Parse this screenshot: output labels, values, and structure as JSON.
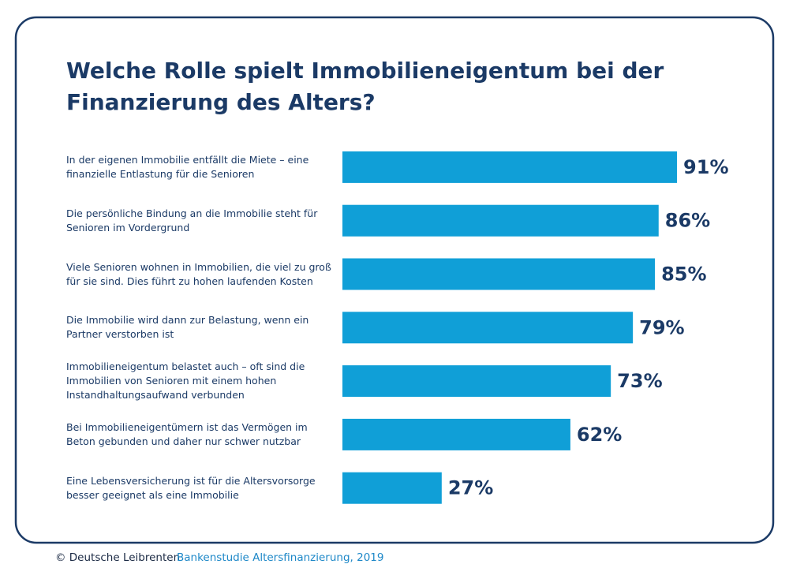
{
  "chart_data": {
    "type": "bar",
    "orientation": "horizontal",
    "title": "Welche Rolle spielt Immobilieneigentum bei der Finanzierung des Alters?",
    "categories": [
      "In der eigenen Immobilie entfällt die Miete – eine finanzielle Entlastung für die Senioren",
      "Die persönliche Bindung an die Immobilie steht für Senioren im Vordergrund",
      "Viele Senioren wohnen in Immobilien, die viel zu groß für sie sind. Dies führt zu hohen laufenden Kosten",
      "Die Immobilie wird dann zur Belastung, wenn ein Partner verstorben ist",
      "Immobilieneigentum belastet auch – oft sind die Immobilien von Senioren mit einem hohen Instandhaltungsaufwand verbunden",
      "Bei Immobilieneigentümern ist das Vermögen im Beton gebunden und daher nur schwer nutzbar",
      "Eine Lebensversicherung ist für die Altersvorsorge besser geeignet als eine Immobilie"
    ],
    "values": [
      91,
      86,
      85,
      79,
      73,
      62,
      27
    ],
    "value_labels": [
      "91%",
      "86%",
      "85%",
      "79%",
      "73%",
      "62%",
      "27%"
    ],
    "color": "#109fd7",
    "copyright": "© Deutsche Leibrenten",
    "source": "Bankenstudie Altersfinanzierung, 2019"
  }
}
